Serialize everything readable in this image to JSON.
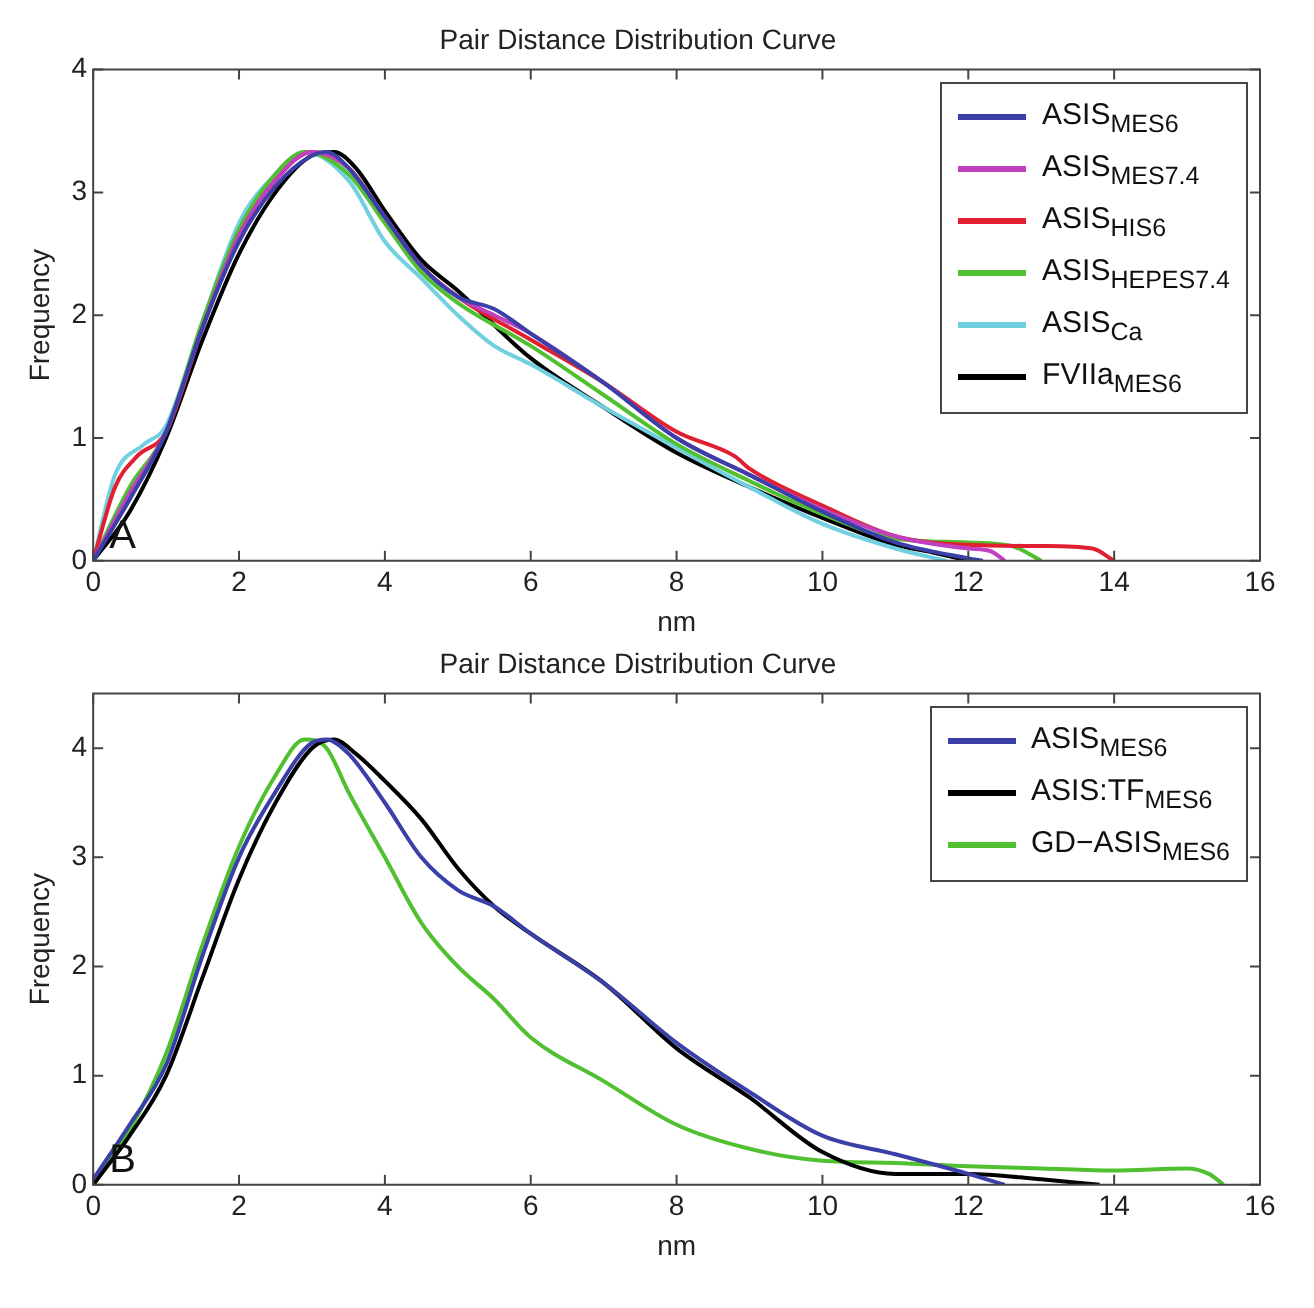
{
  "chart_data": [
    {
      "type": "line",
      "title": "Pair Distance Distribution Curve",
      "xlabel": "nm",
      "ylabel": "Frequency",
      "annotations": [
        "A"
      ],
      "xlim": [
        0,
        16
      ],
      "xticks": [
        0,
        2,
        4,
        6,
        8,
        10,
        12,
        14,
        16
      ],
      "ylim": [
        0,
        4
      ],
      "yticks": [
        0,
        1,
        2,
        3,
        4
      ],
      "grid": false,
      "legend": "top right",
      "series": [
        {
          "name": "ASIS$_{MES6}$",
          "color": "#3b3fa8",
          "x": [
            0,
            0.5,
            1,
            1.5,
            2,
            2.5,
            3,
            3.2,
            3.5,
            4,
            4.5,
            5,
            5.5,
            6,
            7,
            8,
            9,
            10,
            11,
            12,
            12.2
          ],
          "values": [
            0,
            0.5,
            1.05,
            1.9,
            2.6,
            3.05,
            3.3,
            3.33,
            3.2,
            2.8,
            2.4,
            2.15,
            2.05,
            1.85,
            1.45,
            1.0,
            0.7,
            0.4,
            0.15,
            0.02,
            0
          ]
        },
        {
          "name": "ASIS$_{MES7.4}$",
          "color": "#c040c0",
          "x": [
            0,
            0.5,
            1,
            1.5,
            2,
            2.5,
            3,
            3.5,
            4,
            4.5,
            5,
            5.5,
            6,
            7,
            8,
            9,
            10,
            11,
            12,
            12.3,
            12.5
          ],
          "values": [
            0,
            0.55,
            1.05,
            1.9,
            2.65,
            3.1,
            3.33,
            3.2,
            2.8,
            2.4,
            2.15,
            2.0,
            1.85,
            1.45,
            1.0,
            0.7,
            0.42,
            0.2,
            0.1,
            0.08,
            0
          ]
        },
        {
          "name": "ASIS$_{HIS6}$",
          "color": "#e02030",
          "x": [
            0,
            0.3,
            0.6,
            1,
            1.5,
            2,
            2.5,
            3,
            3.5,
            4,
            4.5,
            5,
            6,
            7,
            8,
            8.8,
            9,
            10,
            11,
            12,
            13,
            13.7,
            14
          ],
          "values": [
            0,
            0.6,
            0.85,
            1.05,
            1.9,
            2.65,
            3.1,
            3.33,
            3.2,
            2.8,
            2.4,
            2.15,
            1.8,
            1.45,
            1.05,
            0.85,
            0.75,
            0.45,
            0.2,
            0.13,
            0.12,
            0.1,
            0
          ]
        },
        {
          "name": "ASIS$_{HEPES7.4}$",
          "color": "#50c030",
          "x": [
            0,
            0.5,
            1,
            1.5,
            2,
            2.5,
            2.9,
            3.5,
            4,
            4.5,
            5,
            6,
            7,
            8,
            9,
            10,
            11,
            12,
            12.6,
            13
          ],
          "values": [
            0,
            0.6,
            1.05,
            1.95,
            2.7,
            3.15,
            3.33,
            3.15,
            2.75,
            2.35,
            2.1,
            1.75,
            1.35,
            0.95,
            0.65,
            0.38,
            0.18,
            0.15,
            0.12,
            0
          ]
        },
        {
          "name": "ASIS$_{Ca}$",
          "color": "#70d0e0",
          "x": [
            0,
            0.3,
            0.7,
            1,
            1.5,
            2,
            2.5,
            2.9,
            3.5,
            4,
            4.5,
            5,
            5.5,
            6,
            7,
            8,
            9,
            10,
            11,
            11.7
          ],
          "values": [
            0,
            0.7,
            0.95,
            1.1,
            1.95,
            2.75,
            3.15,
            3.33,
            3.1,
            2.6,
            2.3,
            2.0,
            1.75,
            1.6,
            1.25,
            0.92,
            0.6,
            0.3,
            0.1,
            0
          ]
        },
        {
          "name": "FVIIa$_{MES6}$",
          "color": "#000000",
          "x": [
            0,
            0.5,
            1,
            1.5,
            2,
            2.5,
            3,
            3.3,
            3.6,
            4,
            4.5,
            5,
            6,
            7,
            8,
            9,
            10,
            11,
            11.5,
            12
          ],
          "values": [
            0,
            0.4,
            1.0,
            1.8,
            2.5,
            3.0,
            3.3,
            3.33,
            3.2,
            2.85,
            2.45,
            2.2,
            1.65,
            1.25,
            0.88,
            0.6,
            0.35,
            0.13,
            0.07,
            0
          ]
        }
      ]
    },
    {
      "type": "line",
      "title": "Pair Distance Distribution Curve",
      "xlabel": "nm",
      "ylabel": "Frequency",
      "annotations": [
        "B"
      ],
      "xlim": [
        0,
        16
      ],
      "xticks": [
        0,
        2,
        4,
        6,
        8,
        10,
        12,
        14,
        16
      ],
      "ylim": [
        0,
        4.5
      ],
      "yticks": [
        0,
        1,
        2,
        3,
        4
      ],
      "grid": false,
      "legend": "top right",
      "series": [
        {
          "name": "ASIS$_{MES6}$",
          "color": "#3b3fa8",
          "x": [
            0,
            0.5,
            1,
            1.5,
            2,
            2.5,
            3,
            3.2,
            3.5,
            4,
            4.5,
            5,
            5.5,
            6,
            7,
            8,
            9,
            10,
            11,
            12,
            12.5
          ],
          "values": [
            0.05,
            0.55,
            1.1,
            2.1,
            3.0,
            3.6,
            4.05,
            4.08,
            3.95,
            3.5,
            3.0,
            2.7,
            2.55,
            2.3,
            1.85,
            1.3,
            0.85,
            0.45,
            0.28,
            0.1,
            0
          ]
        },
        {
          "name": "ASIS:TF$_{MES6}$",
          "color": "#000000",
          "x": [
            0,
            0.5,
            1,
            1.5,
            2,
            2.5,
            3,
            3.3,
            3.6,
            4,
            4.5,
            5,
            5.5,
            6,
            7,
            8,
            9,
            10,
            11,
            12,
            13,
            13.8
          ],
          "values": [
            0,
            0.45,
            1.0,
            1.9,
            2.8,
            3.5,
            4.0,
            4.08,
            3.95,
            3.7,
            3.35,
            2.9,
            2.55,
            2.3,
            1.85,
            1.25,
            0.8,
            0.3,
            0.1,
            0.1,
            0.05,
            0
          ]
        },
        {
          "name": "GD−ASIS$_{MES6}$",
          "color": "#50c030",
          "x": [
            0,
            0.5,
            1,
            1.5,
            2,
            2.5,
            2.9,
            3.2,
            3.5,
            4,
            4.5,
            5,
            5.5,
            6,
            7,
            8,
            9,
            10,
            11,
            12,
            13,
            14,
            15,
            15.3,
            15.5
          ],
          "values": [
            0,
            0.5,
            1.2,
            2.2,
            3.1,
            3.75,
            4.08,
            4.0,
            3.6,
            3.0,
            2.4,
            2.0,
            1.7,
            1.35,
            0.95,
            0.55,
            0.33,
            0.22,
            0.2,
            0.17,
            0.15,
            0.13,
            0.15,
            0.1,
            0
          ]
        }
      ]
    }
  ]
}
